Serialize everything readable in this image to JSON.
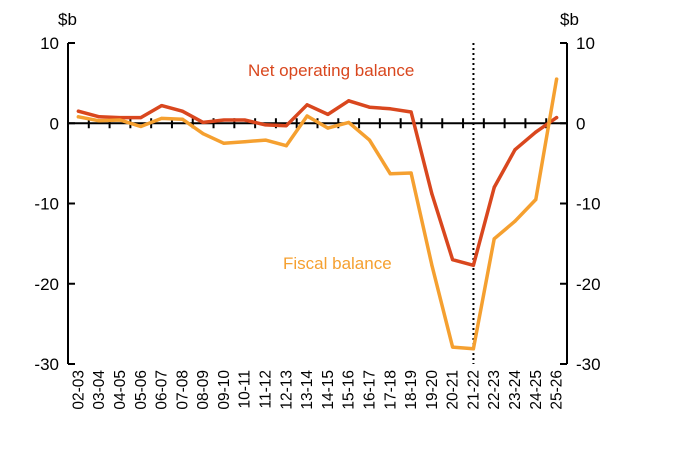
{
  "chart_data": {
    "type": "line",
    "title": "",
    "y_unit_left": "$b",
    "y_unit_right": "$b",
    "categories": [
      "02-03",
      "03-04",
      "04-05",
      "05-06",
      "06-07",
      "07-08",
      "08-09",
      "09-10",
      "10-11",
      "11-12",
      "12-13",
      "13-14",
      "14-15",
      "15-16",
      "16-17",
      "17-18",
      "18-19",
      "19-20",
      "20-21",
      "21-22",
      "22-23",
      "23-24",
      "24-25",
      "25-26"
    ],
    "ylim": [
      -30,
      10
    ],
    "yticks": [
      10,
      0,
      -10,
      -20,
      -30
    ],
    "ytick_labels": [
      "10",
      "0",
      "-10",
      "-20",
      "-30"
    ],
    "divider_after": "21-22",
    "series": [
      {
        "name": "Net operating balance",
        "color": "#D9471E",
        "values": [
          1.5,
          0.8,
          0.7,
          0.7,
          2.2,
          1.5,
          0.1,
          0.4,
          0.4,
          -0.2,
          -0.3,
          2.3,
          1.1,
          2.8,
          2.0,
          1.8,
          1.4,
          -8.8,
          -17.0,
          -17.7,
          -8.0,
          -3.3,
          -1.1,
          0.7
        ]
      },
      {
        "name": "Fiscal balance",
        "color": "#F5A030",
        "values": [
          0.8,
          0.3,
          0.4,
          -0.4,
          0.6,
          0.5,
          -1.3,
          -2.5,
          -2.3,
          -2.1,
          -2.8,
          0.9,
          -0.6,
          0.1,
          -2.1,
          -6.3,
          -6.2,
          -17.7,
          -27.9,
          -28.1,
          -14.4,
          -12.2,
          -9.5,
          5.5
        ]
      }
    ]
  }
}
